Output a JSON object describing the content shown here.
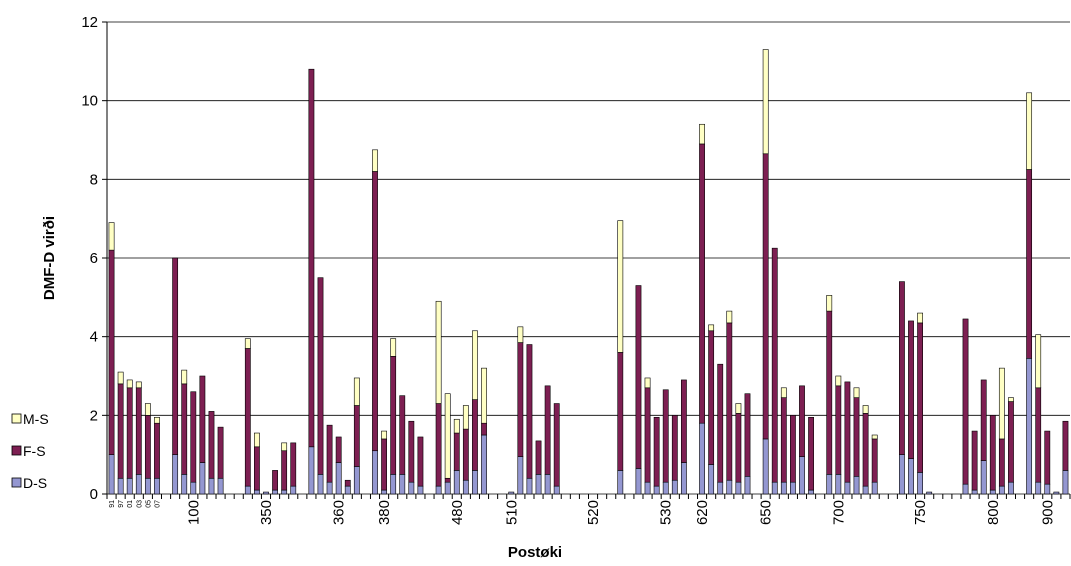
{
  "chart_data": {
    "type": "stacked_bar",
    "y_label": "DMF-D virði",
    "x_label": "Postøki",
    "categories": [
      "91",
      "97",
      "01",
      "03",
      "05",
      "07",
      null,
      null,
      null,
      "100",
      null,
      null,
      null,
      null,
      null,
      null,
      null,
      "350",
      null,
      null,
      null,
      null,
      null,
      null,
      null,
      "360",
      null,
      null,
      null,
      null,
      "380",
      null,
      null,
      null,
      null,
      null,
      null,
      null,
      "480",
      null,
      null,
      null,
      null,
      null,
      "510",
      null,
      null,
      null,
      null,
      null,
      null,
      null,
      null,
      "520",
      null,
      null,
      null,
      null,
      null,
      null,
      null,
      "530",
      null,
      null,
      null,
      "620",
      null,
      null,
      null,
      null,
      null,
      null,
      "650",
      null,
      null,
      null,
      null,
      null,
      null,
      null,
      "700",
      null,
      null,
      null,
      null,
      null,
      null,
      null,
      null,
      "750",
      null,
      null,
      null,
      null,
      null,
      null,
      null,
      "800",
      null,
      null,
      null,
      null,
      null,
      "900",
      null,
      null
    ],
    "series": [
      {
        "name": "D-S",
        "color": "#9497d1",
        "values": [
          1.0,
          0.4,
          0.4,
          0.5,
          0.4,
          0.4,
          0,
          1.0,
          0.5,
          0.3,
          0.8,
          0.4,
          0.4,
          0,
          0,
          0.2,
          0.1,
          0.05,
          0.1,
          0.1,
          0.2,
          0,
          1.2,
          0.5,
          0.3,
          0.8,
          0.2,
          0.7,
          0,
          1.1,
          0.1,
          0.5,
          0.5,
          0.3,
          0.2,
          0,
          0.2,
          0.3,
          0.6,
          0.35,
          0.6,
          1.5,
          0,
          0,
          0.05,
          0.95,
          0.4,
          0.5,
          0.5,
          0.2,
          0,
          0,
          0,
          0,
          0,
          0,
          0.6,
          0,
          0.65,
          0.3,
          0.2,
          0.3,
          0.35,
          0.8,
          0,
          1.8,
          0.75,
          0.3,
          0.35,
          0.3,
          0.45,
          0,
          1.4,
          0.3,
          0.3,
          0.3,
          0.95,
          0.1,
          0,
          0.5,
          0.5,
          0.3,
          0.45,
          0.2,
          0.3,
          0,
          0,
          1.0,
          0.9,
          0.55,
          0.05,
          0,
          0,
          0,
          0.25,
          0.1,
          0.85,
          0.1,
          0.2,
          0.3,
          0,
          3.45,
          0.3,
          0.25,
          0.05,
          0.6
        ]
      },
      {
        "name": "F-S",
        "color": "#7d1f52",
        "values": [
          5.2,
          2.4,
          2.3,
          2.2,
          1.6,
          1.4,
          0,
          5.0,
          2.3,
          2.3,
          2.2,
          1.7,
          1.3,
          0,
          0,
          3.5,
          1.1,
          0,
          0.5,
          1.0,
          1.1,
          0,
          9.6,
          5.0,
          1.45,
          0.65,
          0.15,
          1.55,
          0,
          7.1,
          1.3,
          3.0,
          2.0,
          1.55,
          1.25,
          0,
          2.1,
          0.1,
          0.95,
          1.3,
          1.8,
          0.3,
          0,
          0,
          0,
          2.9,
          3.4,
          0.85,
          2.25,
          2.1,
          0,
          0,
          0,
          0,
          0,
          0,
          3.0,
          0,
          4.65,
          2.4,
          1.75,
          2.35,
          1.65,
          2.1,
          0,
          7.1,
          3.4,
          3.0,
          4.0,
          1.75,
          2.1,
          0,
          7.25,
          5.95,
          2.15,
          1.7,
          1.8,
          1.85,
          0,
          4.15,
          2.25,
          2.55,
          2.0,
          1.85,
          1.1,
          0,
          0,
          4.4,
          3.5,
          3.8,
          0,
          0,
          0,
          0,
          4.2,
          1.5,
          2.05,
          1.9,
          1.2,
          2.05,
          0,
          4.8,
          2.4,
          1.35,
          0,
          1.25
        ]
      },
      {
        "name": "M-S",
        "color": "#ffffc4",
        "values": [
          0.7,
          0.3,
          0.2,
          0.15,
          0.3,
          0.15,
          0,
          0,
          0.35,
          0,
          0,
          0,
          0,
          0,
          0,
          0.25,
          0.35,
          0,
          0,
          0.2,
          0,
          0,
          0,
          0,
          0,
          0,
          0,
          0.7,
          0,
          0.55,
          0.2,
          0.45,
          0,
          0,
          0,
          0,
          2.6,
          2.15,
          0.35,
          0.6,
          1.75,
          1.4,
          0,
          0,
          0,
          0.4,
          0,
          0,
          0,
          0,
          0,
          0,
          0,
          0,
          0,
          0,
          3.35,
          0,
          0,
          0.25,
          0,
          0,
          0,
          0,
          0,
          0.5,
          0.15,
          0,
          0.3,
          0.25,
          0,
          0,
          2.65,
          0,
          0.25,
          0,
          0,
          0,
          0,
          0.4,
          0.25,
          0,
          0.25,
          0.2,
          0.1,
          0,
          0,
          0,
          0,
          0.25,
          0,
          0,
          0,
          0,
          0,
          0,
          0,
          0,
          1.8,
          0.1,
          0,
          1.95,
          1.35,
          0,
          0,
          0
        ]
      }
    ],
    "ylim": [
      0,
      12
    ],
    "yticks": [
      0,
      2,
      4,
      6,
      8,
      10,
      12
    ],
    "grid": true,
    "legend": "left"
  }
}
